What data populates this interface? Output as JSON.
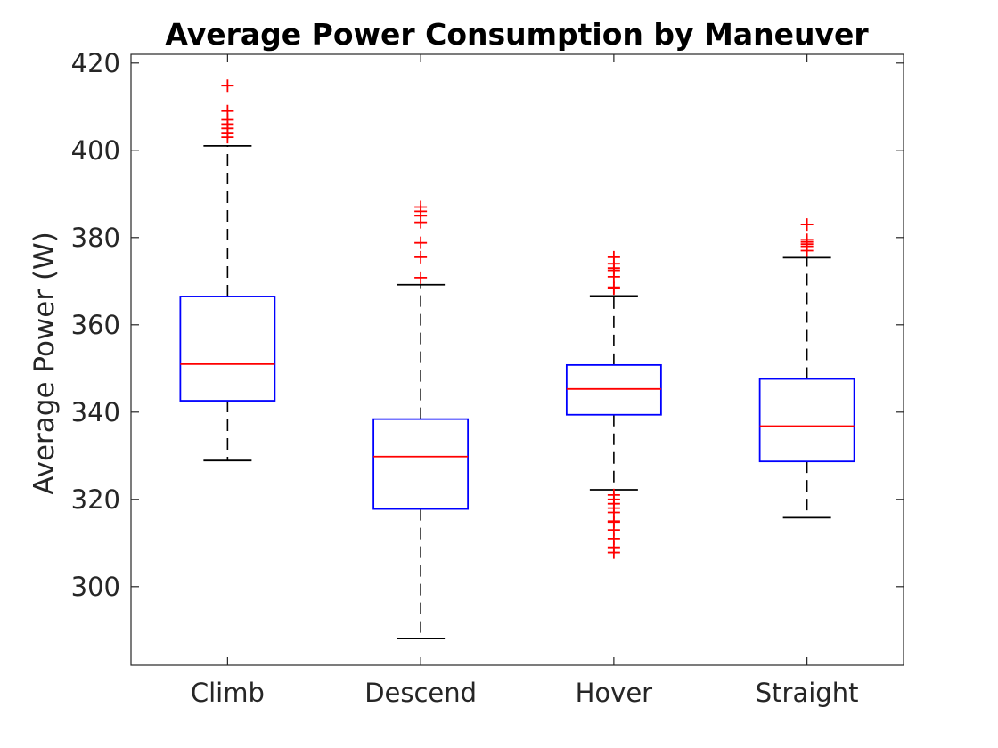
{
  "chart_data": {
    "type": "boxplot",
    "title": "Average Power Consumption by Maneuver",
    "xlabel": "",
    "ylabel": "Average Power (W)",
    "ylim": [
      282,
      422
    ],
    "yticks": [
      300,
      320,
      340,
      360,
      380,
      400,
      420
    ],
    "grid": false,
    "categories": [
      "Climb",
      "Descend",
      "Hover",
      "Straight"
    ],
    "boxes": [
      {
        "category": "Climb",
        "whisker_low": 328.9,
        "q1": 342.6,
        "median": 351.0,
        "q3": 366.5,
        "whisker_high": 401.0,
        "outliers": [
          403.0,
          404.0,
          405.0,
          406.0,
          407.0,
          409.0,
          414.8
        ]
      },
      {
        "category": "Descend",
        "whisker_low": 288.1,
        "q1": 317.8,
        "median": 329.8,
        "q3": 338.4,
        "whisker_high": 369.2,
        "outliers": [
          370.8,
          375.5,
          378.8,
          383.5,
          385.0,
          386.0,
          387.0
        ]
      },
      {
        "category": "Hover",
        "whisker_low": 322.2,
        "q1": 339.4,
        "median": 345.3,
        "q3": 350.8,
        "whisker_high": 366.6,
        "outliers": [
          307.8,
          309.0,
          311.0,
          313.0,
          314.8,
          315.0,
          317.0,
          318.0,
          319.0,
          320.0,
          321.0,
          368.3,
          368.6,
          371.0,
          372.5,
          373.0,
          374.0,
          375.5
        ]
      },
      {
        "category": "Straight",
        "whisker_low": 315.8,
        "q1": 328.7,
        "median": 336.8,
        "q3": 347.6,
        "whisker_high": 375.4,
        "outliers": [
          377.0,
          378.0,
          378.5,
          379.0,
          379.5,
          383.0
        ]
      }
    ],
    "colors": {
      "box": "#0000ff",
      "median": "#ff0000",
      "whisker": "#000000",
      "outlier": "#ff0000",
      "axes": "#262626"
    }
  }
}
